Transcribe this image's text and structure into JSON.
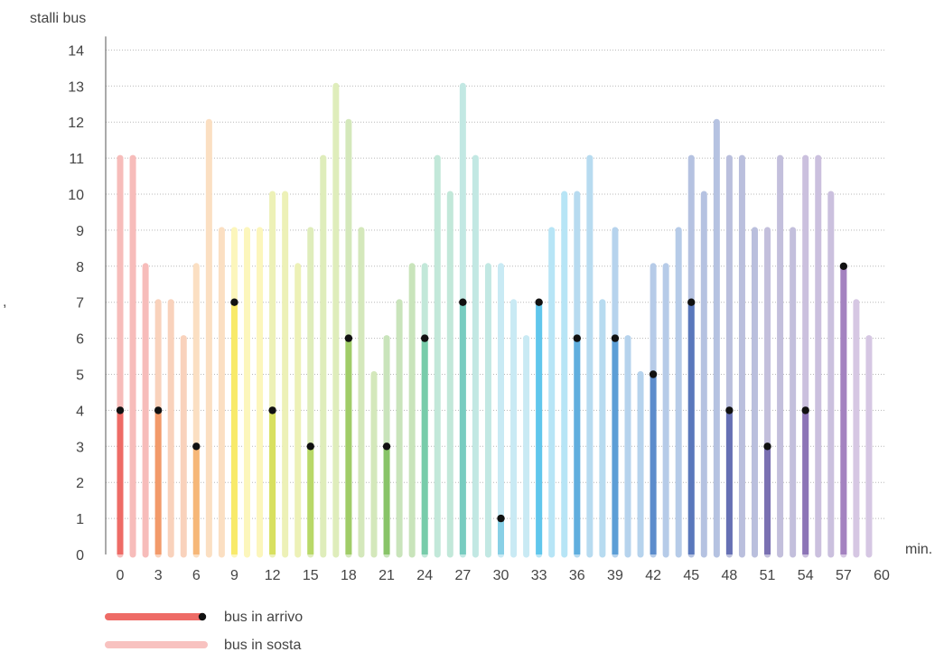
{
  "chart_data": {
    "type": "bar",
    "ylabel": "stalli bus",
    "xlabel": "min.",
    "ylim": [
      0,
      14
    ],
    "xlim": [
      0,
      60
    ],
    "yticks": [
      0,
      1,
      2,
      3,
      4,
      5,
      6,
      7,
      8,
      9,
      10,
      11,
      12,
      13,
      14
    ],
    "xticks": [
      0,
      3,
      6,
      9,
      12,
      15,
      18,
      21,
      24,
      27,
      30,
      33,
      36,
      39,
      42,
      45,
      48,
      51,
      54,
      57,
      60
    ],
    "grid": "horizontal-dotted",
    "stray_mark": ",",
    "legend": {
      "placement": "bottom-left",
      "arrivals_label": "bus in arrivo",
      "parked_label": "bus in sosta",
      "arrivals_color": "#ee6b66",
      "parked_color": "#f8c2c0"
    },
    "series": [
      {
        "name": "bus in sosta",
        "x": [
          0,
          1,
          2,
          3,
          4,
          5,
          6,
          7,
          8,
          9,
          10,
          11,
          12,
          13,
          14,
          15,
          16,
          17,
          18,
          19,
          20,
          21,
          22,
          23,
          24,
          25,
          26,
          27,
          28,
          29,
          30,
          31,
          32,
          33,
          34,
          35,
          36,
          37,
          38,
          39,
          40,
          41,
          42,
          43,
          44,
          45,
          46,
          47,
          48,
          49,
          50,
          51,
          52,
          53,
          54,
          55,
          56,
          57,
          58,
          59
        ],
        "values": [
          11,
          11,
          8,
          7,
          7,
          6,
          8,
          12,
          9,
          9,
          9,
          9,
          10,
          10,
          8,
          9,
          11,
          13,
          12,
          9,
          5,
          6,
          7,
          8,
          8,
          11,
          10,
          13,
          11,
          8,
          8,
          7,
          6,
          7,
          9,
          10,
          10,
          11,
          7,
          9,
          6,
          5,
          8,
          8,
          9,
          11,
          10,
          12,
          11,
          11,
          9,
          9,
          11,
          9,
          11,
          11,
          10,
          8,
          7,
          6
        ]
      },
      {
        "name": "bus in arrivo",
        "x": [
          0,
          3,
          6,
          9,
          12,
          15,
          18,
          21,
          24,
          27,
          30,
          33,
          36,
          39,
          42,
          45,
          48,
          51,
          54,
          57
        ],
        "values": [
          4,
          4,
          3,
          7,
          4,
          3,
          6,
          3,
          6,
          7,
          1,
          7,
          6,
          6,
          5,
          7,
          4,
          3,
          4,
          8
        ]
      }
    ],
    "colors": [
      "#ee6b66",
      "#f29a6a",
      "#f6b778",
      "#f8ea6a",
      "#d8e060",
      "#b8d868",
      "#a0cc68",
      "#88c468",
      "#78ccaa",
      "#78ccc0",
      "#88d0e6",
      "#60c6ec",
      "#60aede",
      "#5c9ed6",
      "#5c8ccc",
      "#5a78bc",
      "#6670b4",
      "#7a70b2",
      "#8c74b6",
      "#a482c0"
    ]
  }
}
